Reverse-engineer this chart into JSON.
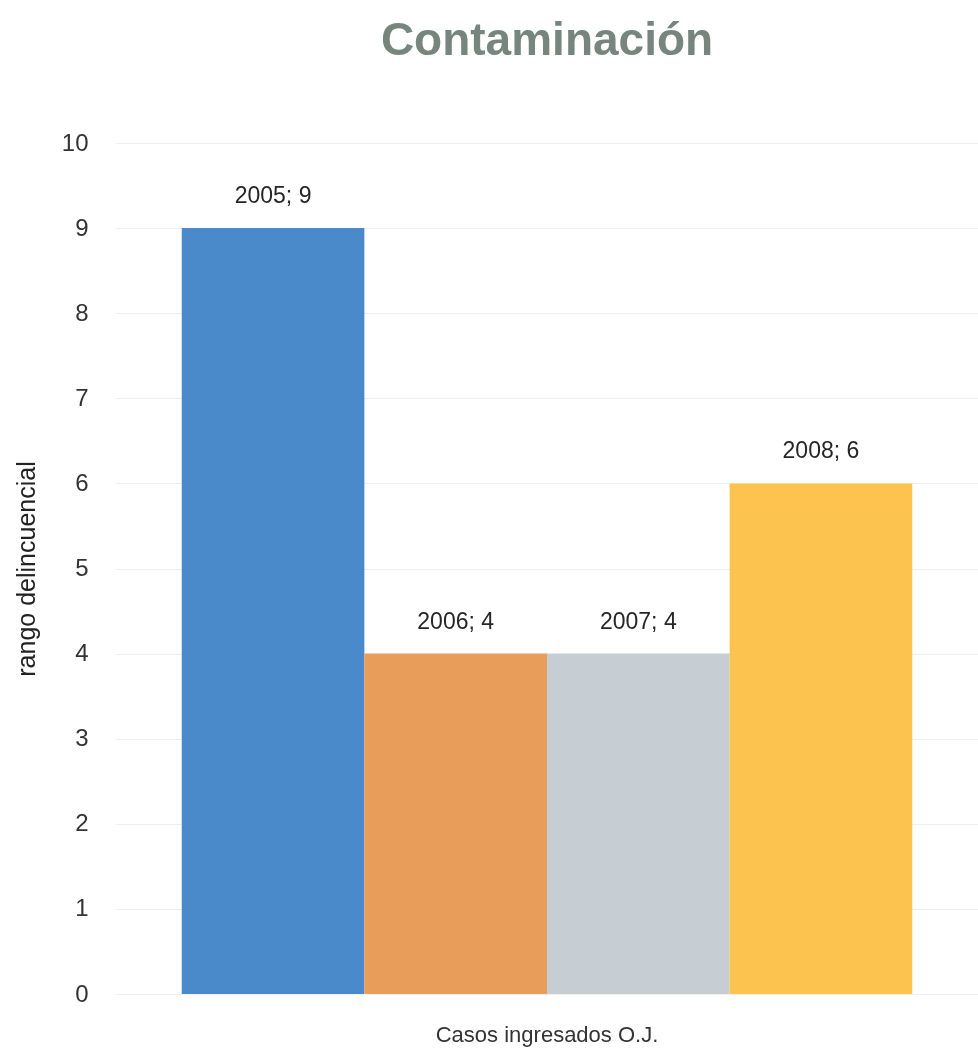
{
  "chart_data": {
    "type": "bar",
    "title": "Contaminación",
    "ylabel": "rango delincuencial",
    "categories": [
      "Casos ingresados O.J."
    ],
    "series": [
      {
        "color": "#4a8acb",
        "values": [
          9
        ],
        "value_labels": [
          "2005; 9"
        ]
      },
      {
        "color": "#e99d5b",
        "values": [
          4
        ],
        "value_labels": [
          "2006; 4"
        ]
      },
      {
        "color": "#c6ced3",
        "values": [
          4
        ],
        "value_labels": [
          "2007; 4"
        ]
      },
      {
        "color": "#fcc44f",
        "values": [
          6
        ],
        "value_labels": [
          "2008; 6"
        ]
      }
    ],
    "ylim": [
      0,
      10
    ],
    "yticks": [
      0,
      1,
      2,
      3,
      4,
      5,
      6,
      7,
      8,
      9,
      10
    ],
    "grid": "y"
  }
}
